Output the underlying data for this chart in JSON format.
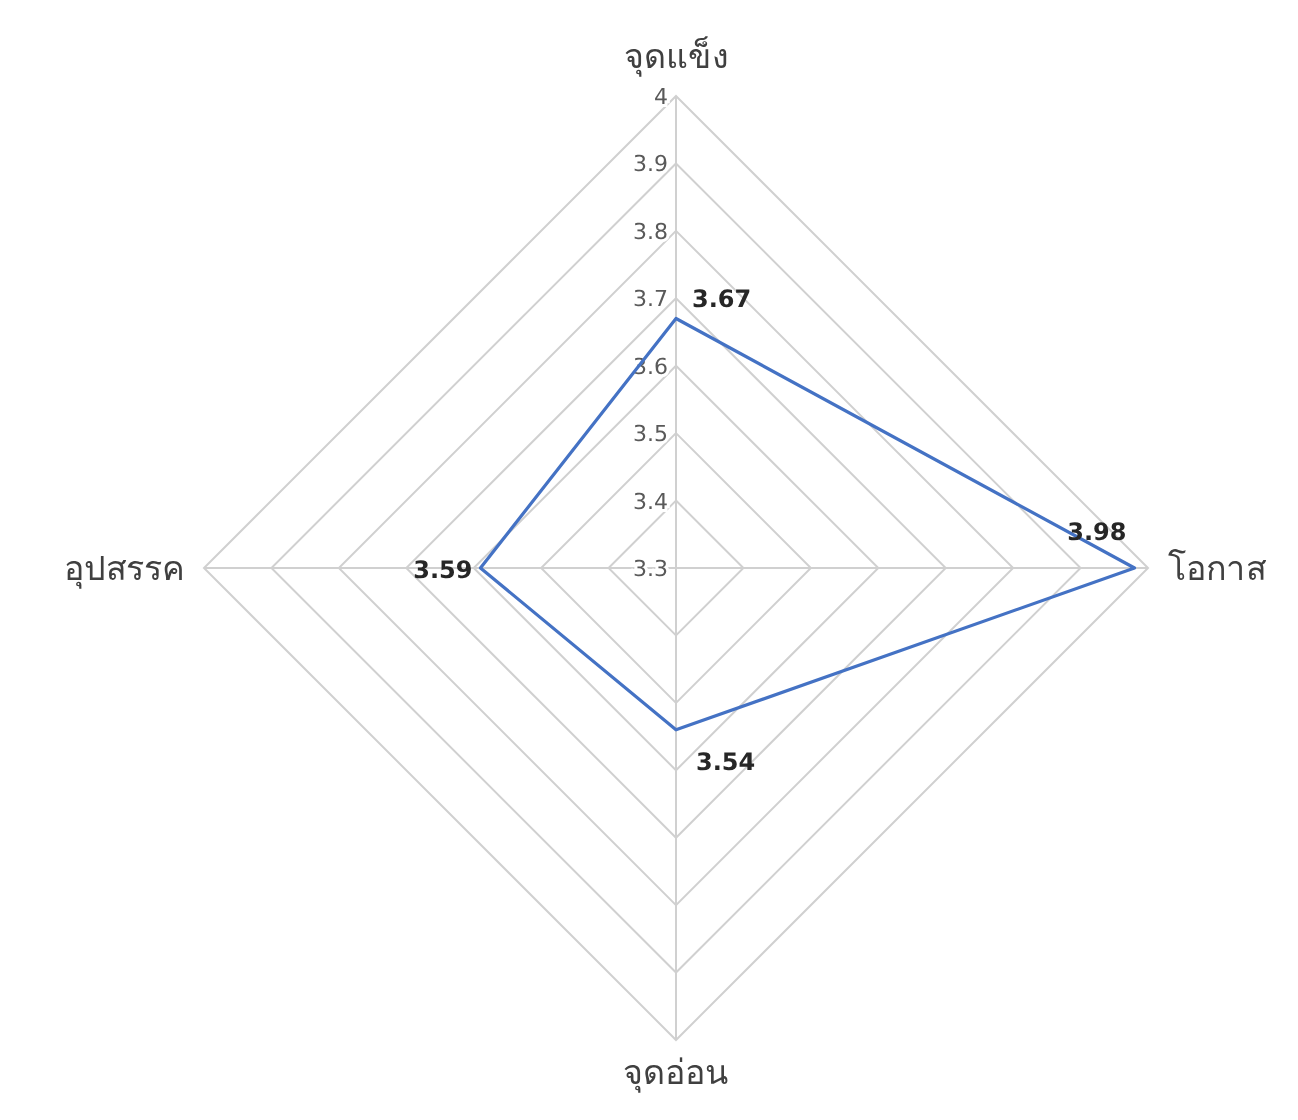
{
  "chart_data": {
    "type": "radar",
    "categories": [
      "จุดแข็ง",
      "โอกาส",
      "จุดอ่อน",
      "อุปสรรค"
    ],
    "series": [
      {
        "color": "#4472c4",
        "values": [
          3.67,
          3.98,
          3.54,
          3.59
        ]
      }
    ],
    "ylim": [
      3.3,
      4
    ],
    "yticks": [
      3.3,
      3.4,
      3.5,
      3.6,
      3.7,
      3.8,
      3.9,
      4
    ],
    "grid": true,
    "data_labels": true,
    "marker": "none"
  }
}
